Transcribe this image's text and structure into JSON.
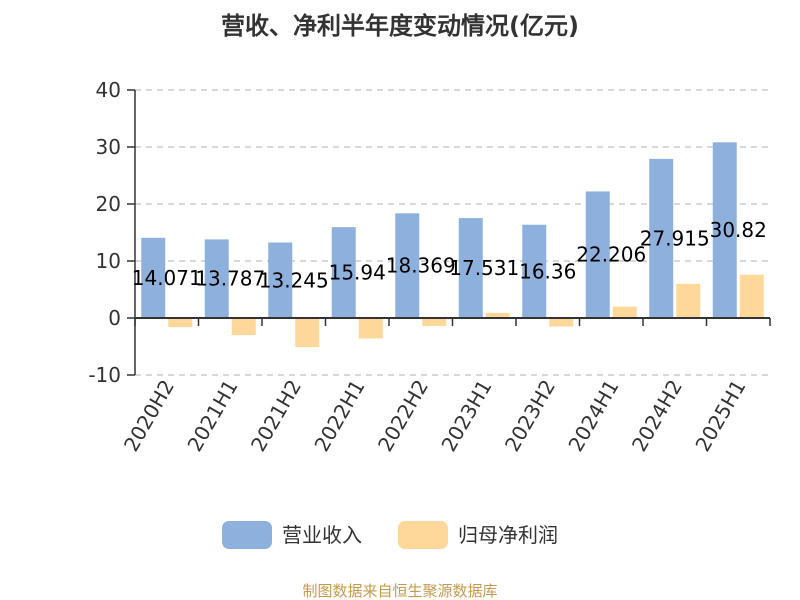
{
  "chart_data": {
    "type": "bar",
    "title": "营收、净利半年度变动情况(亿元)",
    "categories": [
      "2020H2",
      "2021H1",
      "2021H2",
      "2022H1",
      "2022H2",
      "2023H1",
      "2023H2",
      "2024H1",
      "2024H2",
      "2025H1"
    ],
    "series": [
      {
        "name": "营业收入",
        "color": "#8eb0dd",
        "values": [
          14.071,
          13.787,
          13.245,
          15.94,
          18.369,
          17.531,
          16.36,
          22.206,
          27.915,
          30.82
        ],
        "labels": [
          "14.071",
          "13.787",
          "13.245",
          "15.94",
          "18.369",
          "17.531",
          "16.36",
          "22.206",
          "27.915",
          "30.82"
        ]
      },
      {
        "name": "归母净利润",
        "color": "#fdd89a",
        "values": [
          -1.6,
          -3.0,
          -5.1,
          -3.6,
          -1.4,
          0.9,
          -1.5,
          2.0,
          6.0,
          7.6
        ]
      }
    ],
    "ylim": [
      -10,
      40
    ],
    "yticks": [
      -10,
      0,
      10,
      20,
      30,
      40
    ],
    "grid": true,
    "legend_position": "bottom"
  },
  "source": {
    "text": "制图数据来自恒生聚源数据库",
    "color": "#c59a4e"
  },
  "axis_colors": {
    "axis": "#333333",
    "grid": "#cccccc"
  }
}
